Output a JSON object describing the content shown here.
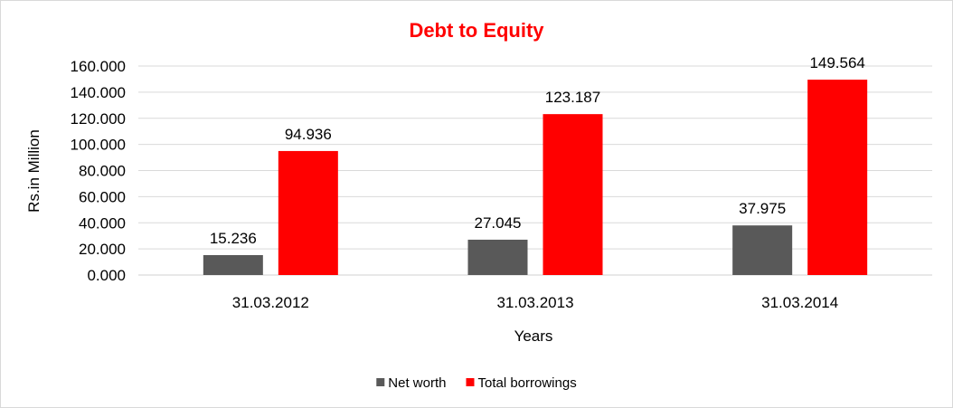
{
  "chart_data": {
    "type": "bar",
    "title": "Debt to Equity",
    "xlabel": "Years",
    "ylabel": "Rs.in Million",
    "categories": [
      "31.03.2012",
      "31.03.2013",
      "31.03.2014"
    ],
    "series": [
      {
        "name": "Net worth",
        "color": "#595959",
        "values": [
          15.236,
          27.045,
          37.975
        ],
        "labels": [
          "15.236",
          "27.045",
          "37.975"
        ]
      },
      {
        "name": "Total borrowings",
        "color": "#ff0000",
        "values": [
          94.936,
          123.187,
          149.564
        ],
        "labels": [
          "94.936",
          "123.187",
          "149.564"
        ]
      }
    ],
    "ylim": [
      0,
      160
    ],
    "yticks": [
      0,
      20,
      40,
      60,
      80,
      100,
      120,
      140,
      160
    ],
    "ytick_labels": [
      "0.000",
      "20.000",
      "40.000",
      "60.000",
      "80.000",
      "100.000",
      "120.000",
      "140.000",
      "160.000"
    ],
    "grid": true,
    "legend_position": "bottom",
    "title_color": "#ff0000"
  }
}
